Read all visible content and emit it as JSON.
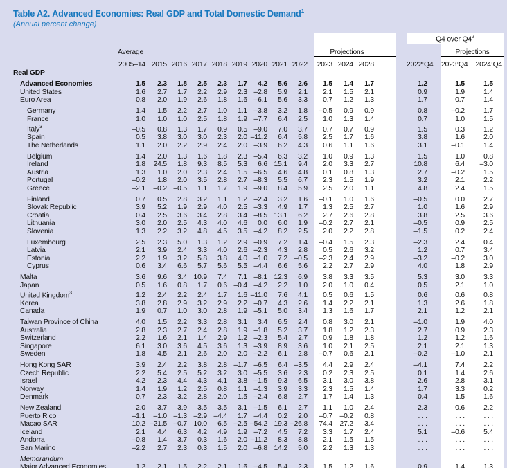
{
  "title": "Table A2. Advanced Economies: Real GDP and Total Domestic Demand",
  "title_sup": "1",
  "subtitle": "(Annual percent change)",
  "colors": {
    "page_background": "#d9dbee",
    "highlight_band": "#ffffff",
    "title_blue": "#1878be",
    "text": "#111111",
    "rule": "#000000"
  },
  "header": {
    "q4_label": "Q4 over Q4",
    "q4_sup": "2",
    "average_label": "Average",
    "projections_label": "Projections",
    "projections_label_q4": "Projections",
    "columns": [
      "2005–14",
      "2015",
      "2016",
      "2017",
      "2018",
      "2019",
      "2020",
      "2021",
      "2022",
      "2023",
      "2024",
      "2028",
      "2022:Q4",
      "2023:Q4",
      "2024:Q4"
    ]
  },
  "rows": [
    {
      "label": "Real GDP",
      "bold": true,
      "indent": 0,
      "values": null
    },
    {
      "label": "Advanced Economies",
      "bold": true,
      "indent": 1,
      "gap": true,
      "values": [
        "1.5",
        "2.3",
        "1.8",
        "2.5",
        "2.3",
        "1.7",
        "–4.2",
        "5.6",
        "2.6",
        "1.5",
        "1.4",
        "1.7",
        "1.2",
        "1.5",
        "1.5"
      ]
    },
    {
      "label": "United States",
      "indent": 1,
      "values": [
        "1.6",
        "2.7",
        "1.7",
        "2.2",
        "2.9",
        "2.3",
        "–2.8",
        "5.9",
        "2.1",
        "2.1",
        "1.5",
        "2.1",
        "0.9",
        "1.9",
        "1.4"
      ]
    },
    {
      "label": "Euro Area",
      "indent": 1,
      "values": [
        "0.8",
        "2.0",
        "1.9",
        "2.6",
        "1.8",
        "1.6",
        "–6.1",
        "5.6",
        "3.3",
        "0.7",
        "1.2",
        "1.3",
        "1.7",
        "0.7",
        "1.4"
      ]
    },
    {
      "label": "Germany",
      "indent": 2,
      "gap": true,
      "values": [
        "1.4",
        "1.5",
        "2.2",
        "2.7",
        "1.0",
        "1.1",
        "–3.8",
        "3.2",
        "1.8",
        "–0.5",
        "0.9",
        "0.9",
        "0.8",
        "–0.2",
        "1.7"
      ]
    },
    {
      "label": "France",
      "indent": 2,
      "values": [
        "1.0",
        "1.0",
        "1.0",
        "2.5",
        "1.8",
        "1.9",
        "–7.7",
        "6.4",
        "2.5",
        "1.0",
        "1.3",
        "1.4",
        "0.7",
        "1.0",
        "1.5"
      ]
    },
    {
      "label": "Italy",
      "sup": "3",
      "indent": 2,
      "values": [
        "–0.5",
        "0.8",
        "1.3",
        "1.7",
        "0.9",
        "0.5",
        "–9.0",
        "7.0",
        "3.7",
        "0.7",
        "0.7",
        "0.9",
        "1.5",
        "0.3",
        "1.2"
      ]
    },
    {
      "label": "Spain",
      "indent": 2,
      "values": [
        "0.5",
        "3.8",
        "3.0",
        "3.0",
        "2.3",
        "2.0",
        "–11.2",
        "6.4",
        "5.8",
        "2.5",
        "1.7",
        "1.6",
        "3.8",
        "1.6",
        "2.0"
      ]
    },
    {
      "label": "The Netherlands",
      "indent": 2,
      "values": [
        "1.1",
        "2.0",
        "2.2",
        "2.9",
        "2.4",
        "2.0",
        "–3.9",
        "6.2",
        "4.3",
        "0.6",
        "1.1",
        "1.6",
        "3.1",
        "–0.1",
        "1.4"
      ]
    },
    {
      "label": "Belgium",
      "indent": 2,
      "gap": true,
      "values": [
        "1.4",
        "2.0",
        "1.3",
        "1.6",
        "1.8",
        "2.3",
        "–5.4",
        "6.3",
        "3.2",
        "1.0",
        "0.9",
        "1.3",
        "1.5",
        "1.0",
        "0.8"
      ]
    },
    {
      "label": "Ireland",
      "indent": 2,
      "values": [
        "1.8",
        "24.5",
        "1.8",
        "9.3",
        "8.5",
        "5.3",
        "6.6",
        "15.1",
        "9.4",
        "2.0",
        "3.3",
        "2.7",
        "10.8",
        "6.4",
        "–3.0"
      ]
    },
    {
      "label": "Austria",
      "indent": 2,
      "values": [
        "1.3",
        "1.0",
        "2.0",
        "2.3",
        "2.4",
        "1.5",
        "–6.5",
        "4.6",
        "4.8",
        "0.1",
        "0.8",
        "1.3",
        "2.7",
        "–0.2",
        "1.5"
      ]
    },
    {
      "label": "Portugal",
      "indent": 2,
      "values": [
        "–0.2",
        "1.8",
        "2.0",
        "3.5",
        "2.8",
        "2.7",
        "–8.3",
        "5.5",
        "6.7",
        "2.3",
        "1.5",
        "1.9",
        "3.2",
        "2.1",
        "2.2"
      ]
    },
    {
      "label": "Greece",
      "indent": 2,
      "values": [
        "–2.1",
        "–0.2",
        "–0.5",
        "1.1",
        "1.7",
        "1.9",
        "–9.0",
        "8.4",
        "5.9",
        "2.5",
        "2.0",
        "1.1",
        "4.8",
        "2.4",
        "1.5"
      ]
    },
    {
      "label": "Finland",
      "indent": 2,
      "gap": true,
      "values": [
        "0.7",
        "0.5",
        "2.8",
        "3.2",
        "1.1",
        "1.2",
        "–2.4",
        "3.2",
        "1.6",
        "–0.1",
        "1.0",
        "1.6",
        "–0.5",
        "0.0",
        "2.7"
      ]
    },
    {
      "label": "Slovak Republic",
      "indent": 2,
      "values": [
        "3.9",
        "5.2",
        "1.9",
        "2.9",
        "4.0",
        "2.5",
        "–3.3",
        "4.9",
        "1.7",
        "1.3",
        "2.5",
        "2.7",
        "1.0",
        "1.6",
        "2.9"
      ]
    },
    {
      "label": "Croatia",
      "indent": 2,
      "values": [
        "0.4",
        "2.5",
        "3.6",
        "3.4",
        "2.8",
        "3.4",
        "–8.5",
        "13.1",
        "6.2",
        "2.7",
        "2.6",
        "2.8",
        "3.8",
        "2.5",
        "3.6"
      ]
    },
    {
      "label": "Lithuania",
      "indent": 2,
      "values": [
        "3.0",
        "2.0",
        "2.5",
        "4.3",
        "4.0",
        "4.6",
        "0.0",
        "6.0",
        "1.9",
        "–0.2",
        "2.7",
        "2.1",
        "–0.5",
        "0.9",
        "2.5"
      ]
    },
    {
      "label": "Slovenia",
      "indent": 2,
      "values": [
        "1.3",
        "2.2",
        "3.2",
        "4.8",
        "4.5",
        "3.5",
        "–4.2",
        "8.2",
        "2.5",
        "2.0",
        "2.2",
        "2.8",
        "–1.5",
        "0.2",
        "2.4"
      ]
    },
    {
      "label": "Luxembourg",
      "indent": 2,
      "gap": true,
      "values": [
        "2.5",
        "2.3",
        "5.0",
        "1.3",
        "1.2",
        "2.9",
        "–0.9",
        "7.2",
        "1.4",
        "–0.4",
        "1.5",
        "2.3",
        "–2.3",
        "2.4",
        "0.4"
      ]
    },
    {
      "label": "Latvia",
      "indent": 2,
      "values": [
        "2.1",
        "3.9",
        "2.4",
        "3.3",
        "4.0",
        "2.6",
        "–2.3",
        "4.3",
        "2.8",
        "0.5",
        "2.6",
        "3.2",
        "1.2",
        "0.7",
        "3.4"
      ]
    },
    {
      "label": "Estonia",
      "indent": 2,
      "values": [
        "2.2",
        "1.9",
        "3.2",
        "5.8",
        "3.8",
        "4.0",
        "–1.0",
        "7.2",
        "–0.5",
        "–2.3",
        "2.4",
        "2.9",
        "–3.2",
        "–0.2",
        "3.0"
      ]
    },
    {
      "label": "Cyprus",
      "indent": 2,
      "values": [
        "0.6",
        "3.4",
        "6.6",
        "5.7",
        "5.6",
        "5.5",
        "–4.4",
        "6.6",
        "5.6",
        "2.2",
        "2.7",
        "2.9",
        "4.0",
        "1.8",
        "2.9"
      ]
    },
    {
      "label": "Malta",
      "indent": 1,
      "gap": true,
      "values": [
        "3.6",
        "9.6",
        "3.4",
        "10.9",
        "7.4",
        "7.1",
        "–8.1",
        "12.3",
        "6.9",
        "3.8",
        "3.3",
        "3.5",
        "5.3",
        "3.0",
        "3.3"
      ]
    },
    {
      "label": "Japan",
      "indent": 1,
      "values": [
        "0.5",
        "1.6",
        "0.8",
        "1.7",
        "0.6",
        "–0.4",
        "–4.2",
        "2.2",
        "1.0",
        "2.0",
        "1.0",
        "0.4",
        "0.5",
        "2.1",
        "1.0"
      ]
    },
    {
      "label": "United Kingdom",
      "sup": "3",
      "indent": 1,
      "values": [
        "1.2",
        "2.4",
        "2.2",
        "2.4",
        "1.7",
        "1.6",
        "–11.0",
        "7.6",
        "4.1",
        "0.5",
        "0.6",
        "1.5",
        "0.6",
        "0.6",
        "0.8"
      ]
    },
    {
      "label": "Korea",
      "indent": 1,
      "values": [
        "3.8",
        "2.8",
        "2.9",
        "3.2",
        "2.9",
        "2.2",
        "–0.7",
        "4.3",
        "2.6",
        "1.4",
        "2.2",
        "2.1",
        "1.3",
        "2.6",
        "1.8"
      ]
    },
    {
      "label": "Canada",
      "indent": 1,
      "values": [
        "1.9",
        "0.7",
        "1.0",
        "3.0",
        "2.8",
        "1.9",
        "–5.1",
        "5.0",
        "3.4",
        "1.3",
        "1.6",
        "1.7",
        "2.1",
        "1.2",
        "2.1"
      ]
    },
    {
      "label": "Taiwan Province of China",
      "indent": 1,
      "gap": true,
      "values": [
        "4.0",
        "1.5",
        "2.2",
        "3.3",
        "2.8",
        "3.1",
        "3.4",
        "6.5",
        "2.4",
        "0.8",
        "3.0",
        "2.1",
        "–1.0",
        "1.9",
        "4.0"
      ]
    },
    {
      "label": "Australia",
      "indent": 1,
      "values": [
        "2.8",
        "2.3",
        "2.7",
        "2.4",
        "2.8",
        "1.9",
        "–1.8",
        "5.2",
        "3.7",
        "1.8",
        "1.2",
        "2.3",
        "2.7",
        "0.9",
        "2.3"
      ]
    },
    {
      "label": "Switzerland",
      "indent": 1,
      "values": [
        "2.2",
        "1.6",
        "2.1",
        "1.4",
        "2.9",
        "1.2",
        "–2.3",
        "5.4",
        "2.7",
        "0.9",
        "1.8",
        "1.8",
        "1.2",
        "1.2",
        "1.6"
      ]
    },
    {
      "label": "Singapore",
      "indent": 1,
      "values": [
        "6.1",
        "3.0",
        "3.6",
        "4.5",
        "3.6",
        "1.3",
        "–3.9",
        "8.9",
        "3.6",
        "1.0",
        "2.1",
        "2.5",
        "2.1",
        "2.1",
        "1.3"
      ]
    },
    {
      "label": "Sweden",
      "indent": 1,
      "values": [
        "1.8",
        "4.5",
        "2.1",
        "2.6",
        "2.0",
        "2.0",
        "–2.2",
        "6.1",
        "2.8",
        "–0.7",
        "0.6",
        "2.1",
        "–0.2",
        "–1.0",
        "2.1"
      ]
    },
    {
      "label": "Hong Kong SAR",
      "indent": 1,
      "gap": true,
      "values": [
        "3.9",
        "2.4",
        "2.2",
        "3.8",
        "2.8",
        "–1.7",
        "–6.5",
        "6.4",
        "–3.5",
        "4.4",
        "2.9",
        "2.4",
        "–4.1",
        "7.4",
        "2.2"
      ]
    },
    {
      "label": "Czech Republic",
      "indent": 1,
      "values": [
        "2.2",
        "5.4",
        "2.5",
        "5.2",
        "3.2",
        "3.0",
        "–5.5",
        "3.6",
        "2.3",
        "0.2",
        "2.3",
        "2.5",
        "0.1",
        "1.4",
        "2.6"
      ]
    },
    {
      "label": "Israel",
      "indent": 1,
      "values": [
        "4.2",
        "2.3",
        "4.4",
        "4.3",
        "4.1",
        "3.8",
        "–1.5",
        "9.3",
        "6.5",
        "3.1",
        "3.0",
        "3.8",
        "2.6",
        "2.8",
        "3.1"
      ]
    },
    {
      "label": "Norway",
      "indent": 1,
      "values": [
        "1.4",
        "1.9",
        "1.2",
        "2.5",
        "0.8",
        "1.1",
        "–1.3",
        "3.9",
        "3.3",
        "2.3",
        "1.5",
        "1.4",
        "1.7",
        "3.3",
        "0.2"
      ]
    },
    {
      "label": "Denmark",
      "indent": 1,
      "values": [
        "0.7",
        "2.3",
        "3.2",
        "2.8",
        "2.0",
        "1.5",
        "–2.4",
        "6.8",
        "2.7",
        "1.7",
        "1.4",
        "1.3",
        "0.4",
        "1.5",
        "1.6"
      ]
    },
    {
      "label": "New Zealand",
      "indent": 1,
      "gap": true,
      "values": [
        "2.0",
        "3.7",
        "3.9",
        "3.5",
        "3.5",
        "3.1",
        "–1.5",
        "6.1",
        "2.7",
        "1.1",
        "1.0",
        "2.4",
        "2.3",
        "0.6",
        "2.2"
      ]
    },
    {
      "label": "Puerto Rico",
      "indent": 1,
      "values": [
        "–1.1",
        "–1.0",
        "–1.3",
        "–2.9",
        "–4.4",
        "1.7",
        "–4.4",
        "0.2",
        "2.0",
        "–0.7",
        "–0.2",
        "0.8",
        ". . .",
        ". . .",
        ". . ."
      ]
    },
    {
      "label": "Macao SAR",
      "indent": 1,
      "values": [
        "10.2",
        "–21.5",
        "–0.7",
        "10.0",
        "6.5",
        "–2.5",
        "–54.2",
        "19.3",
        "–26.8",
        "74.4",
        "27.2",
        "3.4",
        ". . .",
        ". . .",
        ". . ."
      ]
    },
    {
      "label": "Iceland",
      "indent": 1,
      "values": [
        "2.1",
        "4.4",
        "6.3",
        "4.2",
        "4.9",
        "1.9",
        "–7.2",
        "4.5",
        "7.2",
        "3.3",
        "1.7",
        "2.4",
        "5.1",
        "–0.6",
        "5.4"
      ]
    },
    {
      "label": "Andorra",
      "indent": 1,
      "values": [
        "–0.8",
        "1.4",
        "3.7",
        "0.3",
        "1.6",
        "2.0",
        "–11.2",
        "8.3",
        "8.8",
        "2.1",
        "1.5",
        "1.5",
        ". . .",
        ". . .",
        ". . ."
      ]
    },
    {
      "label": "San Marino",
      "indent": 1,
      "values": [
        "–2.2",
        "2.7",
        "2.3",
        "0.3",
        "1.5",
        "2.0",
        "–6.8",
        "14.2",
        "5.0",
        "2.2",
        "1.3",
        "1.3",
        ". . .",
        ". . .",
        ". . ."
      ]
    },
    {
      "label": "Memorandum",
      "italic": true,
      "indent": 1,
      "gap": true,
      "values": null
    },
    {
      "label": "Major Advanced Economies",
      "indent": 1,
      "values": [
        "1.2",
        "2.1",
        "1.5",
        "2.2",
        "2.1",
        "1.6",
        "–4.5",
        "5.4",
        "2.3",
        "1.5",
        "1.2",
        "1.6",
        "0.9",
        "1.4",
        "1.3"
      ]
    }
  ]
}
